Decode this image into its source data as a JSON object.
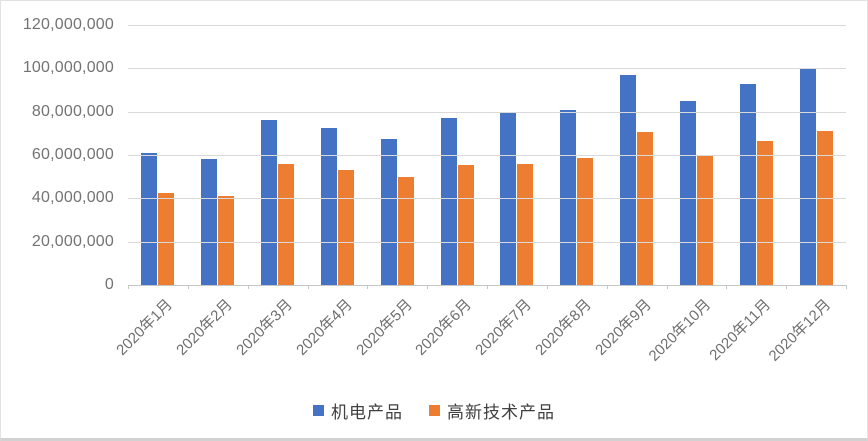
{
  "chart_data": {
    "type": "bar",
    "title": "",
    "categories": [
      "2020年1月",
      "2020年2月",
      "2020年3月",
      "2020年4月",
      "2020年5月",
      "2020年6月",
      "2020年7月",
      "2020年8月",
      "2020年9月",
      "2020年10月",
      "2020年11月",
      "2020年12月"
    ],
    "series": [
      {
        "name": "机电产品",
        "color": "#4472C4",
        "values": [
          61000000,
          58000000,
          76000000,
          72500000,
          67500000,
          77000000,
          80000000,
          81000000,
          97000000,
          85000000,
          93000000,
          100000000
        ]
      },
      {
        "name": "高新技术产品",
        "color": "#ED7D31",
        "values": [
          42500000,
          41000000,
          56000000,
          53000000,
          50000000,
          55500000,
          56000000,
          58500000,
          70500000,
          60000000,
          66500000,
          71000000
        ]
      }
    ],
    "ylim": [
      0,
      120000000
    ],
    "ytick_step": 20000000,
    "ytick_labels": [
      "0",
      "20,000,000",
      "40,000,000",
      "60,000,000",
      "80,000,000",
      "100,000,000",
      "120,000,000"
    ],
    "xlabel": "",
    "ylabel": "",
    "grid": true,
    "legend_position": "bottom",
    "colors": {
      "gridline": "#d9d9d9",
      "axis_line": "#c6c6c6",
      "axis_text": "#737373",
      "legend_text": "#404040"
    }
  }
}
